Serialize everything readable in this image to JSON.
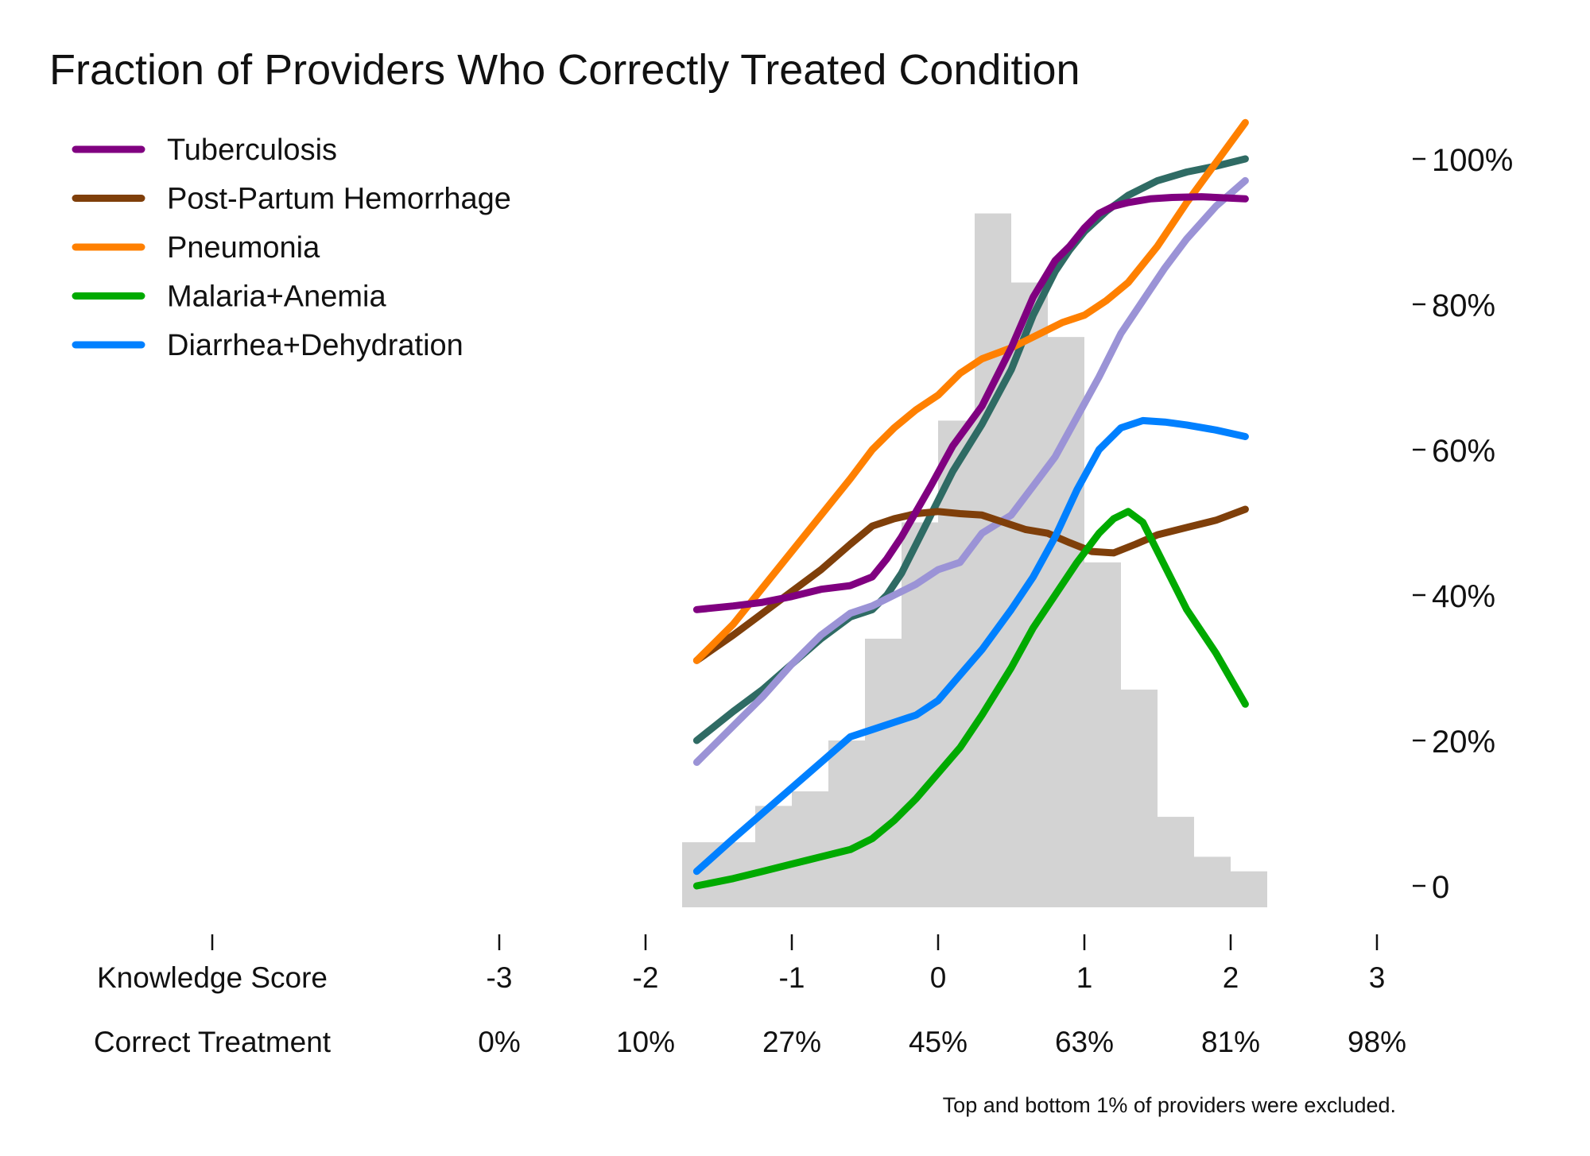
{
  "chart_data": {
    "type": "line",
    "title": "Fraction of Providers Who Correctly Treated Condition",
    "legend_position": "top-left",
    "grid": false,
    "xlim": [
      -3,
      3
    ],
    "ylim": [
      0,
      100
    ],
    "y_axis_side": "right",
    "y_ticks": [
      0,
      20,
      40,
      60,
      80,
      100
    ],
    "y_tick_labels": [
      "0",
      "20%",
      "40%",
      "60%",
      "80%",
      "100%"
    ],
    "x_row_labels": {
      "knowledge": "Knowledge Score",
      "treatment": "Correct Treatment"
    },
    "x_ticks": [
      -3,
      -2,
      -1,
      0,
      1,
      2,
      3
    ],
    "x_tick_labels": [
      "-3",
      "-2",
      "-1",
      "0",
      "1",
      "2",
      "3"
    ],
    "treatment_tick_labels": [
      "0%",
      "10%",
      "27%",
      "45%",
      "63%",
      "81%",
      "98%"
    ],
    "footnote": "Top and bottom 1% of providers were excluded.",
    "histogram": {
      "color": "#d3d3d3",
      "bin_width": 0.25,
      "bins": [
        {
          "x0": -1.75,
          "height": 6
        },
        {
          "x0": -1.25,
          "height": 11
        },
        {
          "x0": -1.0,
          "height": 13
        },
        {
          "x0": -0.75,
          "height": 20
        },
        {
          "x0": -0.5,
          "height": 34
        },
        {
          "x0": -0.25,
          "height": 50
        },
        {
          "x0": 0.0,
          "height": 64
        },
        {
          "x0": 0.25,
          "height": 92.5
        },
        {
          "x0": 0.5,
          "height": 83
        },
        {
          "x0": 0.75,
          "height": 75.5
        },
        {
          "x0": 1.0,
          "height": 44.5
        },
        {
          "x0": 1.25,
          "height": 27
        },
        {
          "x0": 1.5,
          "height": 9.5
        },
        {
          "x0": 1.75,
          "height": 4
        },
        {
          "x0": 2.0,
          "height": 2
        }
      ],
      "first_bin_width": 0.5
    },
    "series": [
      {
        "name": "Tuberculosis",
        "color": "#800080",
        "in_legend": true,
        "x": [
          -1.65,
          -1.4,
          -1.2,
          -1.0,
          -0.8,
          -0.6,
          -0.45,
          -0.35,
          -0.25,
          -0.15,
          -0.05,
          0.1,
          0.3,
          0.5,
          0.65,
          0.8,
          0.9,
          1.0,
          1.1,
          1.2,
          1.3,
          1.45,
          1.6,
          1.8,
          2.0,
          2.1
        ],
        "y": [
          38,
          38.5,
          39,
          39.8,
          40.8,
          41.3,
          42.5,
          45,
          48,
          51.5,
          55,
          60.5,
          66,
          74,
          81,
          86,
          88,
          90.5,
          92.5,
          93.5,
          94,
          94.5,
          94.7,
          94.8,
          94.6,
          94.5
        ]
      },
      {
        "name": "Post-Partum Hemorrhage",
        "color": "#7f3f0a",
        "in_legend": true,
        "x": [
          -1.65,
          -1.4,
          -1.2,
          -1.0,
          -0.8,
          -0.6,
          -0.45,
          -0.3,
          -0.15,
          0.0,
          0.15,
          0.3,
          0.45,
          0.6,
          0.75,
          0.9,
          1.05,
          1.2,
          1.35,
          1.5,
          1.7,
          1.9,
          2.1
        ],
        "y": [
          31,
          34.5,
          37.5,
          40.5,
          43.5,
          47,
          49.5,
          50.5,
          51.2,
          51.5,
          51.2,
          51,
          50,
          49,
          48.5,
          47.2,
          46,
          45.8,
          47,
          48.3,
          49.3,
          50.3,
          51.8
        ]
      },
      {
        "name": "Pneumonia",
        "color": "#ff8000",
        "in_legend": true,
        "x": [
          -1.65,
          -1.4,
          -1.2,
          -1.0,
          -0.8,
          -0.6,
          -0.45,
          -0.3,
          -0.15,
          0.0,
          0.15,
          0.3,
          0.5,
          0.7,
          0.85,
          1.0,
          1.15,
          1.3,
          1.5,
          1.7,
          1.9,
          2.1
        ],
        "y": [
          31,
          36,
          41,
          46,
          51,
          56,
          60,
          63,
          65.5,
          67.5,
          70.5,
          72.5,
          74,
          76,
          77.5,
          78.5,
          80.5,
          83,
          88,
          94,
          99.5,
          105
        ]
      },
      {
        "name": "Malaria+Anemia",
        "color": "#00aa00",
        "in_legend": true,
        "x": [
          -1.65,
          -1.4,
          -1.2,
          -1.0,
          -0.8,
          -0.6,
          -0.45,
          -0.3,
          -0.15,
          0.0,
          0.15,
          0.3,
          0.5,
          0.65,
          0.8,
          0.95,
          1.1,
          1.2,
          1.3,
          1.4,
          1.5,
          1.7,
          1.9,
          2.1
        ],
        "y": [
          0,
          1,
          2,
          3,
          4,
          5,
          6.5,
          9,
          12,
          15.5,
          19,
          23.5,
          30,
          35.5,
          40,
          44.5,
          48.5,
          50.5,
          51.5,
          50,
          46,
          38,
          32,
          25
        ]
      },
      {
        "name": "Diarrhea+Dehydration",
        "color": "#0080ff",
        "in_legend": true,
        "x": [
          -1.65,
          -1.4,
          -1.2,
          -1.0,
          -0.8,
          -0.6,
          -0.45,
          -0.3,
          -0.15,
          0.0,
          0.15,
          0.3,
          0.5,
          0.65,
          0.8,
          0.95,
          1.1,
          1.25,
          1.4,
          1.55,
          1.7,
          1.9,
          2.1
        ],
        "y": [
          2,
          6.5,
          10,
          13.5,
          17,
          20.5,
          21.5,
          22.5,
          23.5,
          25.5,
          29,
          32.5,
          38,
          42.5,
          48,
          54.5,
          60,
          63,
          64,
          63.8,
          63.4,
          62.7,
          61.8
        ]
      },
      {
        "name": "",
        "color": "#2f6b64",
        "in_legend": false,
        "x": [
          -1.65,
          -1.4,
          -1.2,
          -1.0,
          -0.8,
          -0.6,
          -0.45,
          -0.35,
          -0.25,
          -0.15,
          -0.05,
          0.1,
          0.3,
          0.5,
          0.65,
          0.8,
          0.9,
          1.0,
          1.15,
          1.3,
          1.5,
          1.7,
          1.9,
          2.1
        ],
        "y": [
          20,
          24,
          27,
          30.5,
          34,
          37,
          38,
          40,
          43,
          47,
          51,
          57,
          63.5,
          71,
          78.5,
          84.5,
          87.5,
          90,
          92.8,
          95,
          97,
          98.2,
          99,
          100
        ]
      },
      {
        "name": "",
        "color": "#9b93d6",
        "in_legend": false,
        "x": [
          -1.65,
          -1.4,
          -1.2,
          -1.0,
          -0.8,
          -0.6,
          -0.45,
          -0.3,
          -0.15,
          0.0,
          0.15,
          0.3,
          0.5,
          0.65,
          0.8,
          0.95,
          1.1,
          1.25,
          1.4,
          1.55,
          1.7,
          1.9,
          2.1
        ],
        "y": [
          17,
          22,
          26,
          30.5,
          34.5,
          37.5,
          38.5,
          40,
          41.5,
          43.5,
          44.5,
          48.5,
          51,
          55,
          59,
          64.5,
          70,
          76,
          80.5,
          85,
          89,
          93.5,
          97
        ]
      }
    ]
  }
}
